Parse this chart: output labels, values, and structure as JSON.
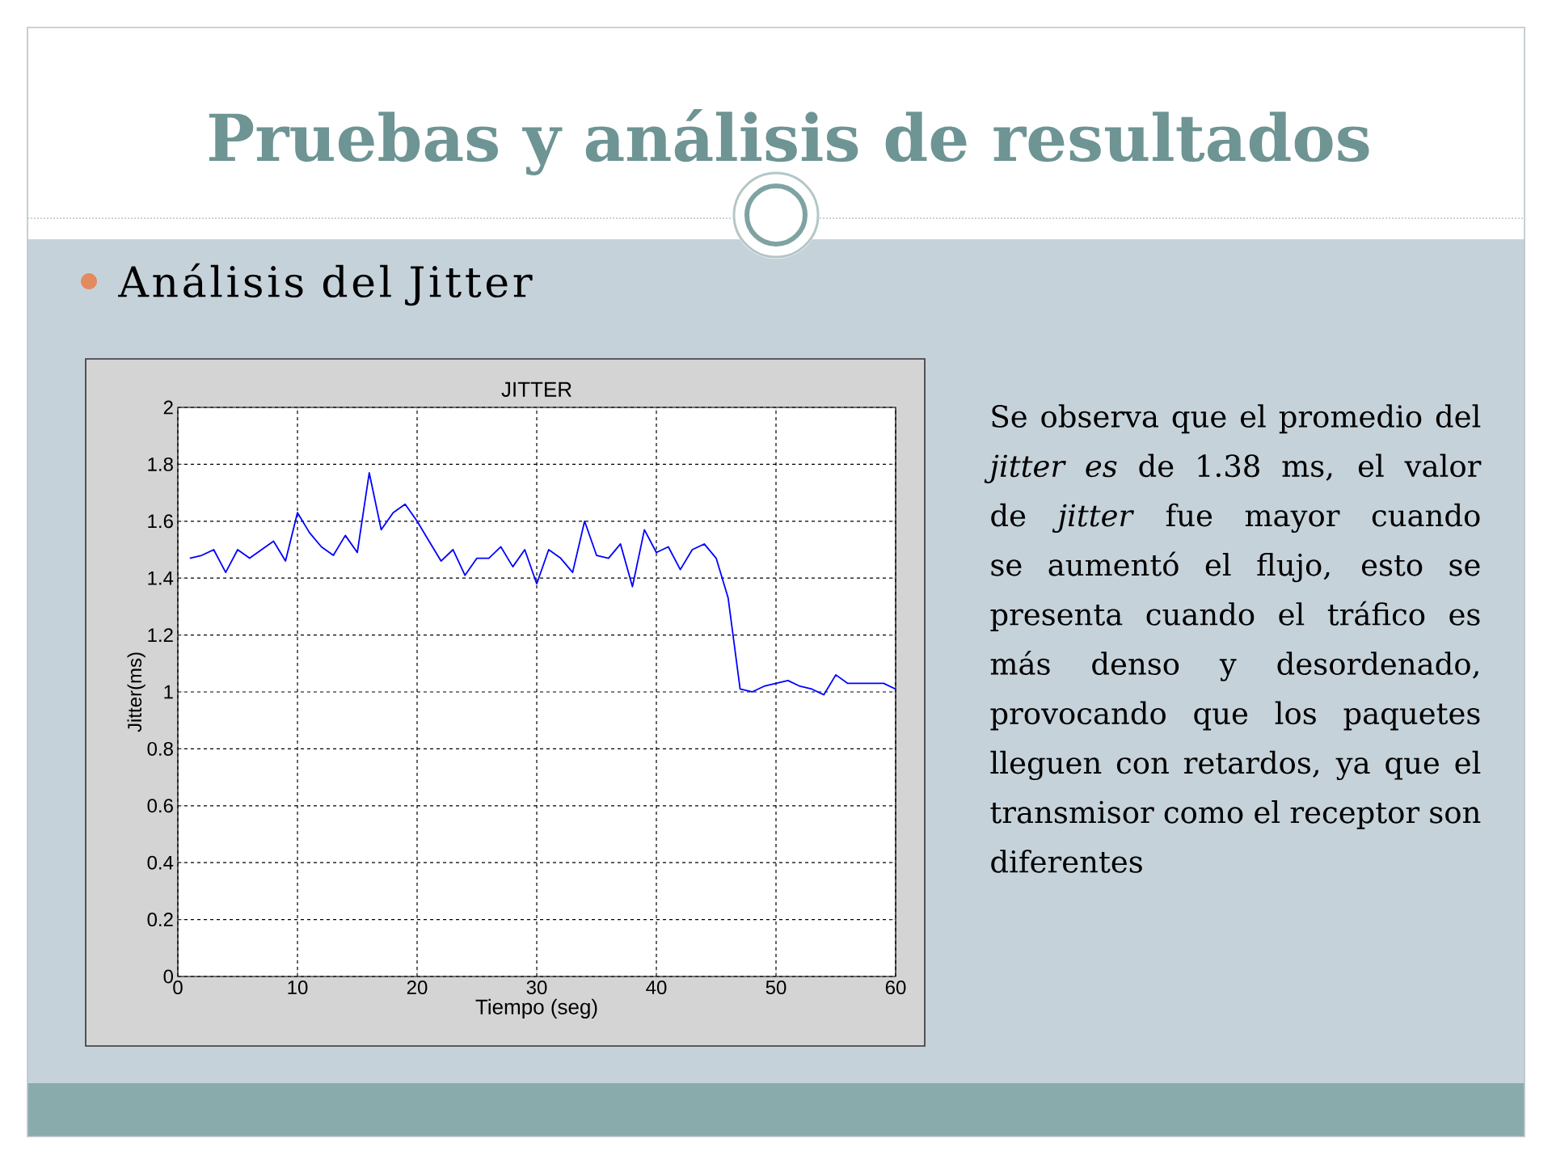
{
  "chart_data": {
    "type": "line",
    "title": "JITTER",
    "xlabel": "Tiempo (seg)",
    "ylabel": "Jitter(ms)",
    "x": [
      1,
      2,
      3,
      4,
      5,
      6,
      7,
      8,
      9,
      10,
      11,
      12,
      13,
      14,
      15,
      16,
      17,
      18,
      19,
      20,
      21,
      22,
      23,
      24,
      25,
      26,
      27,
      28,
      29,
      30,
      31,
      32,
      33,
      34,
      35,
      36,
      37,
      38,
      39,
      40,
      41,
      42,
      43,
      44,
      45,
      46,
      47,
      48,
      49,
      50,
      51,
      52,
      53,
      54,
      55,
      56,
      57,
      58,
      59,
      60
    ],
    "series": [
      {
        "color": "#0000ff",
        "values": [
          1.47,
          1.48,
          1.5,
          1.42,
          1.5,
          1.47,
          1.5,
          1.53,
          1.46,
          1.63,
          1.56,
          1.51,
          1.48,
          1.55,
          1.49,
          1.77,
          1.57,
          1.63,
          1.66,
          1.6,
          1.53,
          1.46,
          1.5,
          1.41,
          1.47,
          1.47,
          1.51,
          1.44,
          1.5,
          1.38,
          1.5,
          1.47,
          1.42,
          1.6,
          1.48,
          1.47,
          1.52,
          1.37,
          1.57,
          1.49,
          1.51,
          1.43,
          1.5,
          1.52,
          1.47,
          1.33,
          1.01,
          1.0,
          1.02,
          1.03,
          1.04,
          1.02,
          1.01,
          0.99,
          1.06,
          1.03,
          1.03,
          1.03,
          1.03,
          1.01
        ]
      }
    ],
    "xlim": [
      0,
      60
    ],
    "ylim": [
      0,
      2
    ],
    "xticks": [
      0,
      10,
      20,
      30,
      40,
      50,
      60
    ],
    "yticks": [
      0,
      0.2,
      0.4,
      0.6,
      0.8,
      1,
      1.2,
      1.4,
      1.6,
      1.8,
      2
    ],
    "grid": true,
    "annotations": [
      "Pruebas y análisis de resultados",
      "Análisis del Jitter",
      "Se observa que el promedio del *jitter es* de 1.38 ms, el valor de *jitter* fue mayor cuando se aumentó el flujo, esto se presenta cuando el tráfico es más denso y desordenado, provocando que los paquetes lleguen con retardos, ya que el transmisor como el receptor son diferentes"
    ]
  }
}
